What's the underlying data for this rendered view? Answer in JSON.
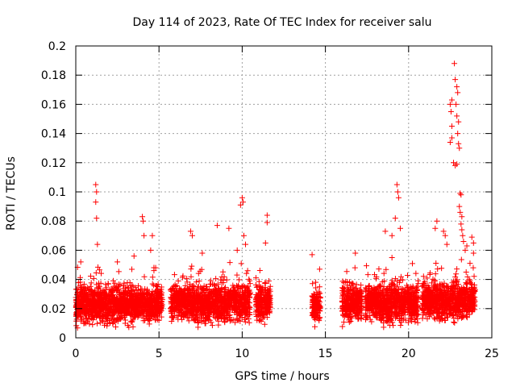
{
  "chart_data": {
    "type": "scatter",
    "title": "Day 114 of 2023, Rate Of TEC Index for receiver salu",
    "xlabel": "GPS time / hours",
    "ylabel": "ROTI / TECUs",
    "xlim": [
      0,
      25
    ],
    "ylim": [
      0,
      0.2
    ],
    "xticks": [
      "0",
      "5",
      "10",
      "15",
      "20",
      "25"
    ],
    "yticks": [
      "0",
      "0.02",
      "0.04",
      "0.06",
      "0.08",
      "0.1",
      "0.12",
      "0.14",
      "0.16",
      "0.18",
      "0.2"
    ],
    "grid": true,
    "marker": "+",
    "color": "#ff0000",
    "segments": [
      {
        "start": 0.0,
        "end": 5.2,
        "base": 0.023
      },
      {
        "start": 5.7,
        "end": 10.5,
        "base": 0.024
      },
      {
        "start": 10.8,
        "end": 11.7,
        "base": 0.025
      },
      {
        "start": 14.2,
        "end": 14.7,
        "base": 0.022
      },
      {
        "start": 16.0,
        "end": 17.2,
        "base": 0.024
      },
      {
        "start": 17.4,
        "end": 20.6,
        "base": 0.024
      },
      {
        "start": 20.8,
        "end": 24.0,
        "base": 0.026
      }
    ],
    "outliers": [
      {
        "x": 0.3,
        "y": 0.052
      },
      {
        "x": 1.2,
        "y": 0.105
      },
      {
        "x": 1.25,
        "y": 0.1
      },
      {
        "x": 1.2,
        "y": 0.093
      },
      {
        "x": 1.25,
        "y": 0.082
      },
      {
        "x": 1.3,
        "y": 0.064
      },
      {
        "x": 2.5,
        "y": 0.052
      },
      {
        "x": 3.5,
        "y": 0.056
      },
      {
        "x": 4.0,
        "y": 0.083
      },
      {
        "x": 4.05,
        "y": 0.08
      },
      {
        "x": 4.1,
        "y": 0.07
      },
      {
        "x": 4.6,
        "y": 0.07
      },
      {
        "x": 4.5,
        "y": 0.06
      },
      {
        "x": 4.8,
        "y": 0.048
      },
      {
        "x": 6.9,
        "y": 0.073
      },
      {
        "x": 7.0,
        "y": 0.07
      },
      {
        "x": 7.6,
        "y": 0.058
      },
      {
        "x": 8.5,
        "y": 0.077
      },
      {
        "x": 9.2,
        "y": 0.075
      },
      {
        "x": 9.7,
        "y": 0.06
      },
      {
        "x": 9.9,
        "y": 0.091
      },
      {
        "x": 10.0,
        "y": 0.096
      },
      {
        "x": 10.05,
        "y": 0.093
      },
      {
        "x": 10.1,
        "y": 0.07
      },
      {
        "x": 10.2,
        "y": 0.064
      },
      {
        "x": 11.5,
        "y": 0.084
      },
      {
        "x": 11.5,
        "y": 0.079
      },
      {
        "x": 11.4,
        "y": 0.065
      },
      {
        "x": 14.2,
        "y": 0.057
      },
      {
        "x": 16.8,
        "y": 0.058
      },
      {
        "x": 18.6,
        "y": 0.073
      },
      {
        "x": 19.0,
        "y": 0.07
      },
      {
        "x": 19.2,
        "y": 0.082
      },
      {
        "x": 19.3,
        "y": 0.105
      },
      {
        "x": 19.35,
        "y": 0.1
      },
      {
        "x": 19.4,
        "y": 0.096
      },
      {
        "x": 19.5,
        "y": 0.075
      },
      {
        "x": 19.0,
        "y": 0.055
      },
      {
        "x": 21.6,
        "y": 0.075
      },
      {
        "x": 21.7,
        "y": 0.08
      },
      {
        "x": 22.1,
        "y": 0.073
      },
      {
        "x": 22.2,
        "y": 0.07
      },
      {
        "x": 22.3,
        "y": 0.064
      },
      {
        "x": 22.5,
        "y": 0.134
      },
      {
        "x": 22.6,
        "y": 0.137
      },
      {
        "x": 22.6,
        "y": 0.145
      },
      {
        "x": 22.55,
        "y": 0.155
      },
      {
        "x": 22.5,
        "y": 0.16
      },
      {
        "x": 22.6,
        "y": 0.163
      },
      {
        "x": 22.7,
        "y": 0.12
      },
      {
        "x": 22.8,
        "y": 0.118
      },
      {
        "x": 22.75,
        "y": 0.188
      },
      {
        "x": 22.8,
        "y": 0.177
      },
      {
        "x": 22.9,
        "y": 0.172
      },
      {
        "x": 22.95,
        "y": 0.168
      },
      {
        "x": 22.85,
        "y": 0.16
      },
      {
        "x": 22.9,
        "y": 0.152
      },
      {
        "x": 23.0,
        "y": 0.148
      },
      {
        "x": 22.95,
        "y": 0.14
      },
      {
        "x": 23.0,
        "y": 0.133
      },
      {
        "x": 23.05,
        "y": 0.13
      },
      {
        "x": 22.9,
        "y": 0.119
      },
      {
        "x": 23.1,
        "y": 0.099
      },
      {
        "x": 23.15,
        "y": 0.098
      },
      {
        "x": 23.05,
        "y": 0.09
      },
      {
        "x": 23.1,
        "y": 0.086
      },
      {
        "x": 23.2,
        "y": 0.083
      },
      {
        "x": 23.15,
        "y": 0.078
      },
      {
        "x": 23.2,
        "y": 0.074
      },
      {
        "x": 23.25,
        "y": 0.07
      },
      {
        "x": 23.3,
        "y": 0.066
      },
      {
        "x": 23.4,
        "y": 0.06
      },
      {
        "x": 23.5,
        "y": 0.063
      },
      {
        "x": 23.8,
        "y": 0.069
      },
      {
        "x": 23.9,
        "y": 0.065
      },
      {
        "x": 23.9,
        "y": 0.058
      }
    ]
  }
}
